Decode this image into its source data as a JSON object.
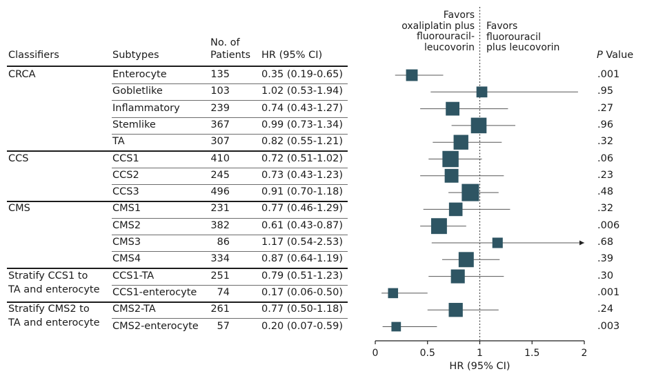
{
  "headers": {
    "classifiers": "Classifiers",
    "subtypes": "Subtypes",
    "patients_line1": "No. of",
    "patients_line2": "Patients",
    "hr": "HR (95% CI)",
    "pvalue_italic": "P",
    "pvalue_rest": " Value"
  },
  "direction_labels": {
    "left": [
      "Favors",
      "oxaliplatin plus",
      "fluorouracil-",
      "leucovorin"
    ],
    "right": [
      "Favors",
      "fluorouracil",
      "plus leucovorin"
    ]
  },
  "groups": [
    {
      "label_lines": [
        "CRCA"
      ],
      "first_row": 0,
      "row_count": 5
    },
    {
      "label_lines": [
        "CCS"
      ],
      "first_row": 5,
      "row_count": 3
    },
    {
      "label_lines": [
        "CMS"
      ],
      "first_row": 8,
      "row_count": 4
    },
    {
      "label_lines": [
        "Stratify CCS1 to",
        "TA and enterocyte"
      ],
      "first_row": 12,
      "row_count": 2
    },
    {
      "label_lines": [
        "Stratify CMS2 to",
        "TA and enterocyte"
      ],
      "first_row": 14,
      "row_count": 2
    }
  ],
  "chart_data": {
    "type": "forest",
    "xlabel": "HR (95% CI)",
    "xlim": [
      0,
      2
    ],
    "xticks": [
      "0",
      "0.5",
      "1",
      "1.5",
      "2"
    ],
    "reference_line": 1,
    "rows": [
      {
        "subtype": "Enterocyte",
        "n": "135",
        "hr_text": "0.35 (0.19-0.65)",
        "p": ".001",
        "hr": 0.35,
        "lo": 0.19,
        "hi": 0.65
      },
      {
        "subtype": "Gobletlike",
        "n": "103",
        "hr_text": "1.02 (0.53-1.94)",
        "p": ".95",
        "hr": 1.02,
        "lo": 0.53,
        "hi": 1.94
      },
      {
        "subtype": "Inflammatory",
        "n": "239",
        "hr_text": "0.74 (0.43-1.27)",
        "p": ".27",
        "hr": 0.74,
        "lo": 0.43,
        "hi": 1.27
      },
      {
        "subtype": "Stemlike",
        "n": "367",
        "hr_text": "0.99 (0.73-1.34)",
        "p": ".96",
        "hr": 0.99,
        "lo": 0.73,
        "hi": 1.34
      },
      {
        "subtype": "TA",
        "n": "307",
        "hr_text": "0.82 (0.55-1.21)",
        "p": ".32",
        "hr": 0.82,
        "lo": 0.55,
        "hi": 1.21
      },
      {
        "subtype": "CCS1",
        "n": "410",
        "hr_text": "0.72 (0.51-1.02)",
        "p": ".06",
        "hr": 0.72,
        "lo": 0.51,
        "hi": 1.02
      },
      {
        "subtype": "CCS2",
        "n": "245",
        "hr_text": "0.73 (0.43-1.23)",
        "p": ".23",
        "hr": 0.73,
        "lo": 0.43,
        "hi": 1.23
      },
      {
        "subtype": "CCS3",
        "n": "496",
        "hr_text": "0.91 (0.70-1.18)",
        "p": ".48",
        "hr": 0.91,
        "lo": 0.7,
        "hi": 1.18
      },
      {
        "subtype": "CMS1",
        "n": "231",
        "hr_text": "0.77 (0.46-1.29)",
        "p": ".32",
        "hr": 0.77,
        "lo": 0.46,
        "hi": 1.29
      },
      {
        "subtype": "CMS2",
        "n": "382",
        "hr_text": "0.61 (0.43-0.87)",
        "p": ".006",
        "hr": 0.61,
        "lo": 0.43,
        "hi": 0.87
      },
      {
        "subtype": "CMS3",
        "n": "86",
        "hr_text": "1.17 (0.54-2.53)",
        "p": ".68",
        "hr": 1.17,
        "lo": 0.54,
        "hi": 2.53
      },
      {
        "subtype": "CMS4",
        "n": "334",
        "hr_text": "0.87 (0.64-1.19)",
        "p": ".39",
        "hr": 0.87,
        "lo": 0.64,
        "hi": 1.19
      },
      {
        "subtype": "CCS1-TA",
        "n": "251",
        "hr_text": "0.79 (0.51-1.23)",
        "p": ".30",
        "hr": 0.79,
        "lo": 0.51,
        "hi": 1.23
      },
      {
        "subtype": "CCS1-enterocyte",
        "n": "74",
        "hr_text": "0.17 (0.06-0.50)",
        "p": ".001",
        "hr": 0.17,
        "lo": 0.06,
        "hi": 0.5
      },
      {
        "subtype": "CMS2-TA",
        "n": "261",
        "hr_text": "0.77 (0.50-1.18)",
        "p": ".24",
        "hr": 0.77,
        "lo": 0.5,
        "hi": 1.18
      },
      {
        "subtype": "CMS2-enterocyte",
        "n": "57",
        "hr_text": "0.20 (0.07-0.59)",
        "p": ".003",
        "hr": 0.2,
        "lo": 0.07,
        "hi": 0.59
      }
    ],
    "colors": {
      "marker": "#2e5563",
      "line": "#555555",
      "axis": "#1a1a1a"
    }
  }
}
